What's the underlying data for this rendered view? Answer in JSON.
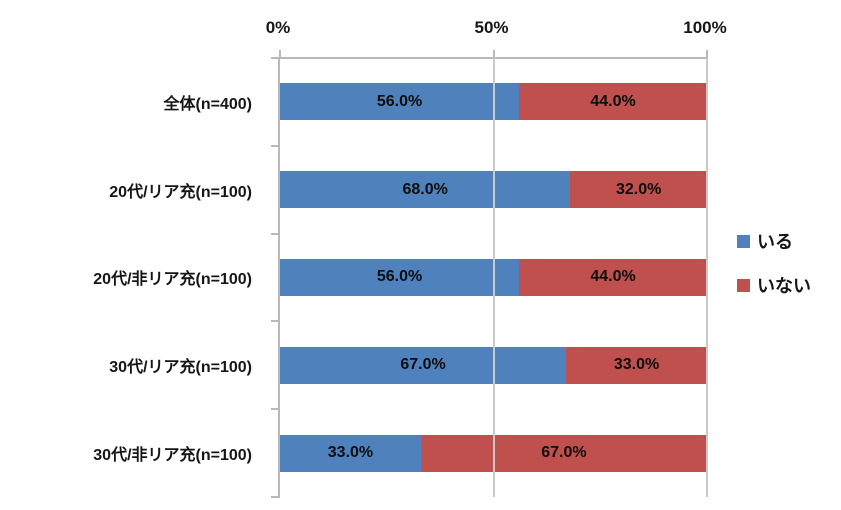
{
  "chart_data": {
    "type": "bar",
    "orientation": "horizontal_stacked",
    "title": "",
    "categories": [
      "全体(n=400)",
      "20代/リア充(n=100)",
      "20代/非リア充(n=100)",
      "30代/リア充(n=100)",
      "30代/非リア充(n=100)"
    ],
    "series": [
      {
        "name": "いる",
        "color": "#4F81BD",
        "values": [
          56.0,
          68.0,
          56.0,
          67.0,
          33.0
        ]
      },
      {
        "name": "いない",
        "color": "#C0504D",
        "values": [
          44.0,
          32.0,
          44.0,
          33.0,
          67.0
        ]
      }
    ],
    "data_labels": [
      [
        "56.0%",
        "44.0%"
      ],
      [
        "68.0%",
        "32.0%"
      ],
      [
        "56.0%",
        "44.0%"
      ],
      [
        "67.0%",
        "33.0%"
      ],
      [
        "33.0%",
        "67.0%"
      ]
    ],
    "x_axis": {
      "position": "top",
      "range": [
        0,
        100
      ],
      "tick_labels": [
        "0%",
        "50%",
        "100%"
      ],
      "tick_values": [
        0,
        50,
        100
      ]
    },
    "grid": true,
    "legend": {
      "position": "right",
      "entries": [
        {
          "label": "いる",
          "color": "#4F81BD"
        },
        {
          "label": "いない",
          "color": "#C0504D"
        }
      ]
    },
    "colors": {
      "axis": "#b9b9b9",
      "gridline": "#c9c9c9",
      "text": "#161616",
      "background": "#ffffff"
    }
  }
}
